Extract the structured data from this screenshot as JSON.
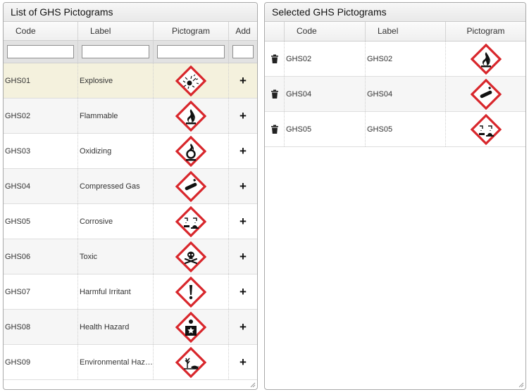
{
  "left_panel": {
    "title": "List of GHS Pictograms",
    "columns": {
      "code": "Code",
      "label": "Label",
      "pictogram": "Pictogram",
      "add": "Add"
    },
    "filters": {
      "code": "",
      "label": "",
      "pictogram": "",
      "add": ""
    },
    "rows": [
      {
        "code": "GHS01",
        "label": "Explosive",
        "pictogram": "explosive-pictogram-icon",
        "add": "+"
      },
      {
        "code": "GHS02",
        "label": "Flammable",
        "pictogram": "flame-pictogram-icon",
        "add": "+"
      },
      {
        "code": "GHS03",
        "label": "Oxidizing",
        "pictogram": "flame-over-circle-pictogram-icon",
        "add": "+"
      },
      {
        "code": "GHS04",
        "label": "Compressed Gas",
        "pictogram": "gas-cylinder-pictogram-icon",
        "add": "+"
      },
      {
        "code": "GHS05",
        "label": "Corrosive",
        "pictogram": "corrosion-pictogram-icon",
        "add": "+"
      },
      {
        "code": "GHS06",
        "label": "Toxic",
        "pictogram": "skull-crossbones-pictogram-icon",
        "add": "+"
      },
      {
        "code": "GHS07",
        "label": "Harmful Irritant",
        "pictogram": "exclamation-pictogram-icon",
        "add": "+"
      },
      {
        "code": "GHS08",
        "label": "Health Hazard",
        "pictogram": "health-hazard-pictogram-icon",
        "add": "+"
      },
      {
        "code": "GHS09",
        "label": "Environmental Hazard",
        "pictogram": "environment-pictogram-icon",
        "add": "+"
      }
    ]
  },
  "right_panel": {
    "title": "Selected GHS Pictograms",
    "columns": {
      "code": "Code",
      "label": "Label",
      "pictogram": "Pictogram"
    },
    "rows": [
      {
        "code": "GHS02",
        "label": "GHS02",
        "pictogram": "flame-pictogram-icon",
        "action": "trash-icon"
      },
      {
        "code": "GHS04",
        "label": "GHS04",
        "pictogram": "gas-cylinder-pictogram-icon",
        "action": "trash-icon"
      },
      {
        "code": "GHS05",
        "label": "GHS05",
        "pictogram": "corrosion-pictogram-icon",
        "action": "trash-icon"
      }
    ]
  },
  "colors": {
    "pictogram_border": "#d8262b",
    "selected_row": "#f4f1dd",
    "alt_row": "#f6f6f6"
  }
}
